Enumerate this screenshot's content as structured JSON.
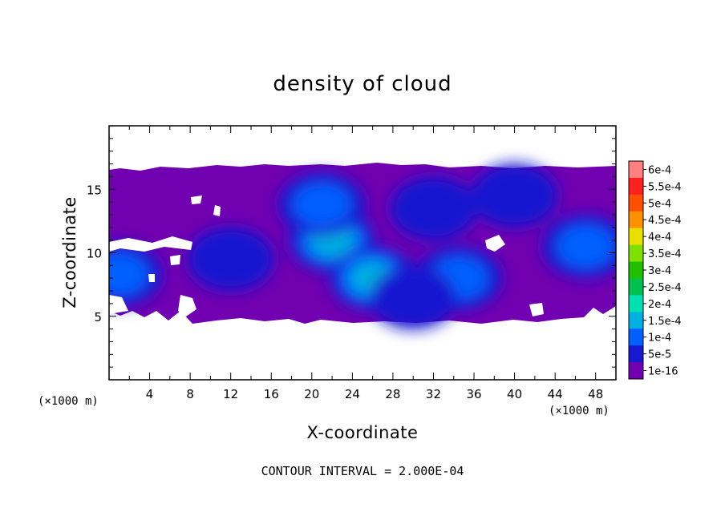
{
  "chart_data": {
    "type": "heatmap",
    "title": "density of cloud",
    "xlabel": "X-coordinate",
    "ylabel": "Z-coordinate",
    "x_unit": "(×1000 m)",
    "xlim": [
      0,
      50
    ],
    "ylim": [
      0,
      20
    ],
    "x_ticks": [
      4,
      8,
      12,
      16,
      20,
      24,
      28,
      32,
      36,
      40,
      44,
      48
    ],
    "y_ticks": [
      5,
      10,
      15
    ],
    "colorbar": {
      "labels": [
        "6e-4",
        "5.5e-4",
        "5e-4",
        "4.5e-4",
        "4e-4",
        "3.5e-4",
        "3e-4",
        "2.5e-4",
        "2e-4",
        "1.5e-4",
        "1e-4",
        "5e-5",
        "1e-16"
      ],
      "colors": [
        "#ff8080",
        "#ff2020",
        "#ff5000",
        "#ff9000",
        "#e8e000",
        "#80e000",
        "#20c000",
        "#00c050",
        "#00e0b0",
        "#00b0e0",
        "#0060ff",
        "#1818d0",
        "#7000b0"
      ]
    },
    "cloud_layer": {
      "z_bottom": 4.6,
      "z_top": 16.6
    },
    "features": [
      {
        "x": 22,
        "z": 11.0,
        "level": "1.5e-4"
      },
      {
        "x": 26,
        "z": 8.0,
        "level": "1.5e-4"
      },
      {
        "x": 21,
        "z": 13.8,
        "level": "1e-4"
      },
      {
        "x": 34.5,
        "z": 8.0,
        "level": "1e-4"
      },
      {
        "x": 47,
        "z": 10.5,
        "level": "1e-4"
      },
      {
        "x": 1,
        "z": 8.3,
        "level": "1e-4"
      },
      {
        "x": 12,
        "z": 9.5,
        "level": "5e-5"
      },
      {
        "x": 40,
        "z": 14.5,
        "level": "5e-5"
      },
      {
        "x": 32,
        "z": 13.5,
        "level": "5e-5"
      },
      {
        "x": 30,
        "z": 6.5,
        "level": "5e-5"
      }
    ]
  },
  "footer_text": "CONTOUR INTERVAL = 2.000E-04"
}
